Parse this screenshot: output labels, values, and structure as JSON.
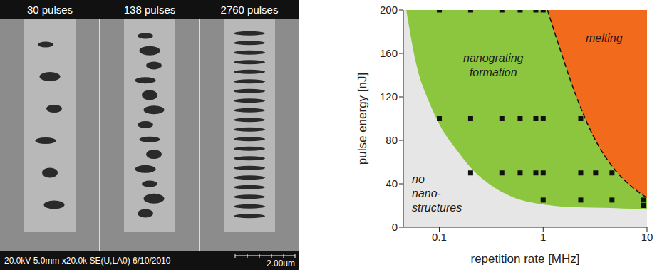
{
  "sem_image": {
    "panel_labels": [
      "30 pulses",
      "138 pulses",
      "2760 pulses"
    ],
    "info_bar": "20.0kV 5.0mm x20.0k SE(U,LA0) 6/10/2010",
    "scale_bar": "2.00um"
  },
  "chart_data": {
    "type": "scatter",
    "x_label": "repetition rate [MHz]",
    "y_label": "pulse energy [nJ]",
    "log": "x",
    "grid": false,
    "xlim": [
      0.045,
      10
    ],
    "xticks": [
      0.1,
      1,
      10
    ],
    "ylim": [
      0,
      200
    ],
    "yticks": [
      0,
      40,
      80,
      120,
      160,
      200
    ],
    "regions": {
      "x": [
        0.048,
        0.06,
        0.08,
        0.1,
        0.15,
        0.2,
        0.3,
        0.5,
        1,
        1.1,
        1.5,
        2,
        3,
        5,
        7,
        10
      ],
      "no_nanostructures": {
        "label": [
          "no",
          "nano-",
          "structures"
        ],
        "color": "#e6e6e6"
      },
      "nanograting_formation": {
        "label": [
          "nanograting",
          "formation"
        ],
        "color": "#8cc63f",
        "lower": [
          200,
          150,
          115,
          95,
          70,
          55,
          40,
          28,
          21,
          20.5,
          19,
          18.5,
          18,
          17.5,
          17,
          17
        ]
      },
      "melting": {
        "label": [
          "melting"
        ],
        "color": "#f26a1b",
        "line_style": "dashed",
        "lower": [
          null,
          null,
          null,
          null,
          null,
          null,
          null,
          null,
          null,
          200,
          160,
          125,
          85,
          52,
          38,
          27
        ]
      }
    },
    "points": {
      "marker": "square",
      "color": "#111111",
      "x": [
        0.1,
        0.2,
        0.4,
        0.6,
        0.85,
        1,
        0.1,
        0.2,
        0.4,
        0.6,
        0.85,
        1,
        2.3,
        0.2,
        0.4,
        0.6,
        0.85,
        1,
        2.3,
        3.2,
        4.6,
        1,
        2.3,
        4.6,
        9.2,
        9.2
      ],
      "y": [
        200,
        200,
        200,
        200,
        200,
        200,
        100,
        100,
        100,
        100,
        100,
        100,
        100,
        50,
        50,
        50,
        50,
        50,
        50,
        50,
        50,
        25,
        25,
        25,
        25,
        20
      ]
    }
  }
}
